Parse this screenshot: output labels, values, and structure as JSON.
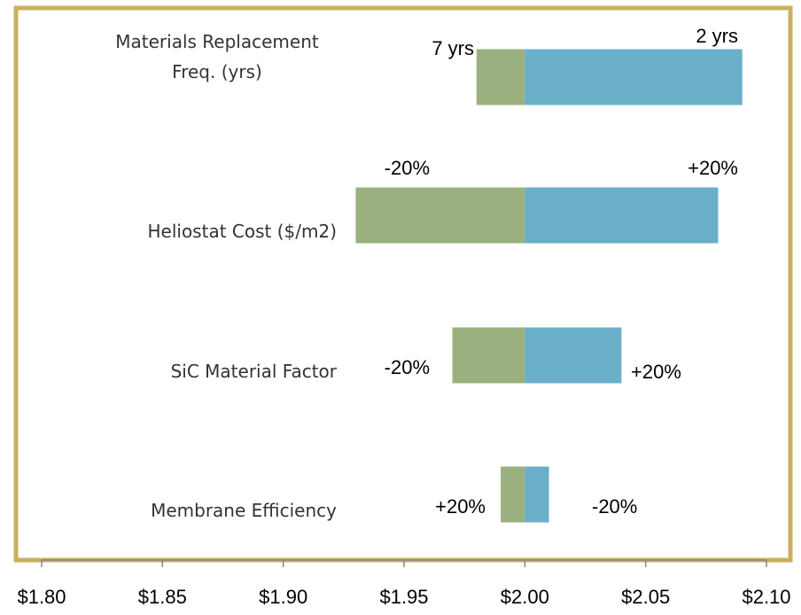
{
  "chart_data": {
    "type": "tornado",
    "categories": [
      "Materials Replacement Freq. (yrs)",
      "Heliostat Cost ($/m2)",
      "SiC Material Factor",
      "Membrane Efficiency"
    ],
    "base": 2.0,
    "series": [
      {
        "color": "#9bb07f",
        "values": [
          1.98,
          1.93,
          1.97,
          1.99
        ],
        "value_labels": [
          "7 yrs",
          "-20%",
          "-20%",
          "+20%"
        ]
      },
      {
        "color": "#6aafc8",
        "values": [
          2.09,
          2.08,
          2.04,
          2.01
        ],
        "value_labels": [
          "2 yrs",
          "+20%",
          "+20%",
          "-20%"
        ]
      }
    ],
    "xlim": [
      1.8,
      2.1
    ],
    "xticks": [
      {
        "value": 1.8,
        "label": "$1.80"
      },
      {
        "value": 1.85,
        "label": "$1.85"
      },
      {
        "value": 1.9,
        "label": "$1.90"
      },
      {
        "value": 1.95,
        "label": "$1.95"
      },
      {
        "value": 2.0,
        "label": "$2.00"
      },
      {
        "value": 2.05,
        "label": "$2.05"
      },
      {
        "value": 2.1,
        "label": "$2.10"
      }
    ],
    "frame_color": "#c8b060"
  }
}
